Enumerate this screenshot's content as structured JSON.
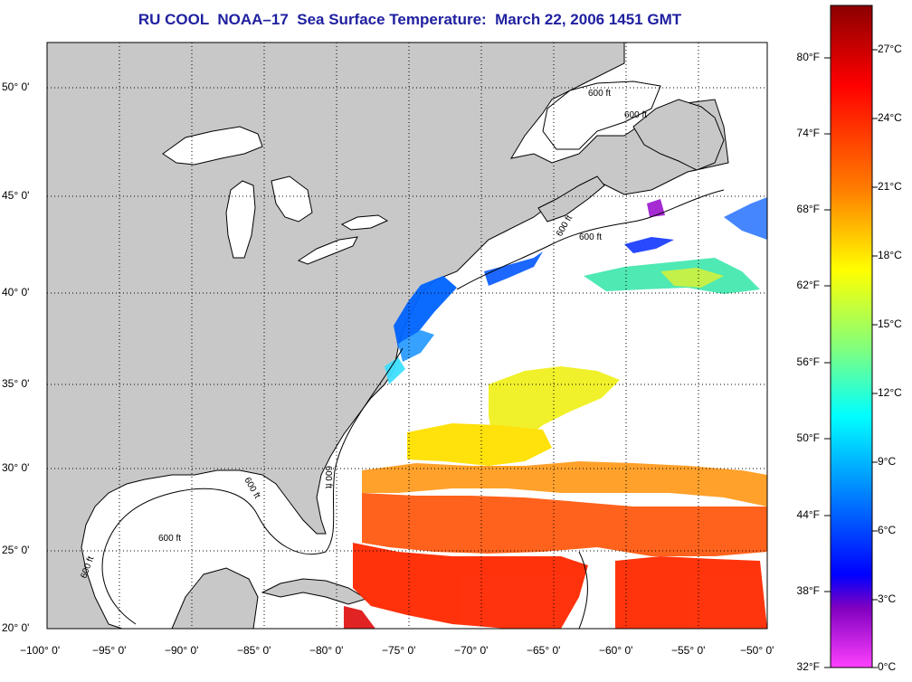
{
  "title": "RU COOL  NOAA–17  Sea Surface Temperature:  March 22, 2006 1451 GMT",
  "map": {
    "lon_labels": [
      "−100° 0'",
      "−95° 0'",
      "−90° 0'",
      "−85° 0'",
      "−80° 0'",
      "−75° 0'",
      "−70° 0'",
      "−65° 0'",
      "−60° 0'",
      "−55° 0'",
      "−50° 0'"
    ],
    "lat_labels": [
      "50° 0'",
      "45° 0'",
      "40° 0'",
      "35° 0'",
      "30° 0'",
      "25° 0'",
      "20° 0'"
    ],
    "contour_label": "600 ft",
    "land_color": "#c8c8c8",
    "ocean_color": "#ffffff"
  },
  "colorbar": {
    "fahrenheit_labels": [
      "80°F",
      "74°F",
      "68°F",
      "62°F",
      "56°F",
      "50°F",
      "44°F",
      "38°F",
      "32°F"
    ],
    "celsius_labels": [
      "27°C",
      "24°C",
      "21°C",
      "18°C",
      "15°C",
      "12°C",
      "9°C",
      "6°C",
      "3°C",
      "0°C"
    ],
    "colors": [
      "#8b0000",
      "#ff0000",
      "#ff7f00",
      "#ffff00",
      "#7fff7f",
      "#00ffff",
      "#0080ff",
      "#0000ff",
      "#8000c0",
      "#ff40ff"
    ]
  }
}
